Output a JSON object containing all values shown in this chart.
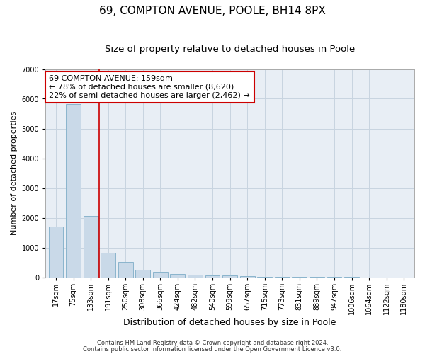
{
  "title1": "69, COMPTON AVENUE, POOLE, BH14 8PX",
  "title2": "Size of property relative to detached houses in Poole",
  "xlabel": "Distribution of detached houses by size in Poole",
  "ylabel": "Number of detached properties",
  "bar_labels": [
    "17sqm",
    "75sqm",
    "133sqm",
    "191sqm",
    "250sqm",
    "308sqm",
    "366sqm",
    "424sqm",
    "482sqm",
    "540sqm",
    "599sqm",
    "657sqm",
    "715sqm",
    "773sqm",
    "831sqm",
    "889sqm",
    "947sqm",
    "1006sqm",
    "1064sqm",
    "1122sqm",
    "1180sqm"
  ],
  "bar_values": [
    1700,
    5820,
    2050,
    820,
    520,
    240,
    185,
    110,
    90,
    70,
    50,
    25,
    10,
    5,
    3,
    2,
    1,
    1,
    0,
    0,
    0
  ],
  "bar_color": "#c9d9e8",
  "bar_edge_color": "#8ab4cc",
  "vline_color": "#cc0000",
  "annotation_text": "69 COMPTON AVENUE: 159sqm\n← 78% of detached houses are smaller (8,620)\n22% of semi-detached houses are larger (2,462) →",
  "annotation_box_color": "#ffffff",
  "annotation_box_edge_color": "#cc0000",
  "ylim": [
    0,
    7000
  ],
  "yticks": [
    0,
    1000,
    2000,
    3000,
    4000,
    5000,
    6000,
    7000
  ],
  "footer1": "Contains HM Land Registry data © Crown copyright and database right 2024.",
  "footer2": "Contains public sector information licensed under the Open Government Licence v3.0.",
  "bg_color": "#ffffff",
  "plot_bg_color": "#e8eef5",
  "grid_color": "#c8d4e0",
  "title1_fontsize": 11,
  "title2_fontsize": 9.5,
  "ylabel_fontsize": 8,
  "xlabel_fontsize": 9,
  "tick_fontsize": 7,
  "footer_fontsize": 6,
  "annot_fontsize": 8
}
